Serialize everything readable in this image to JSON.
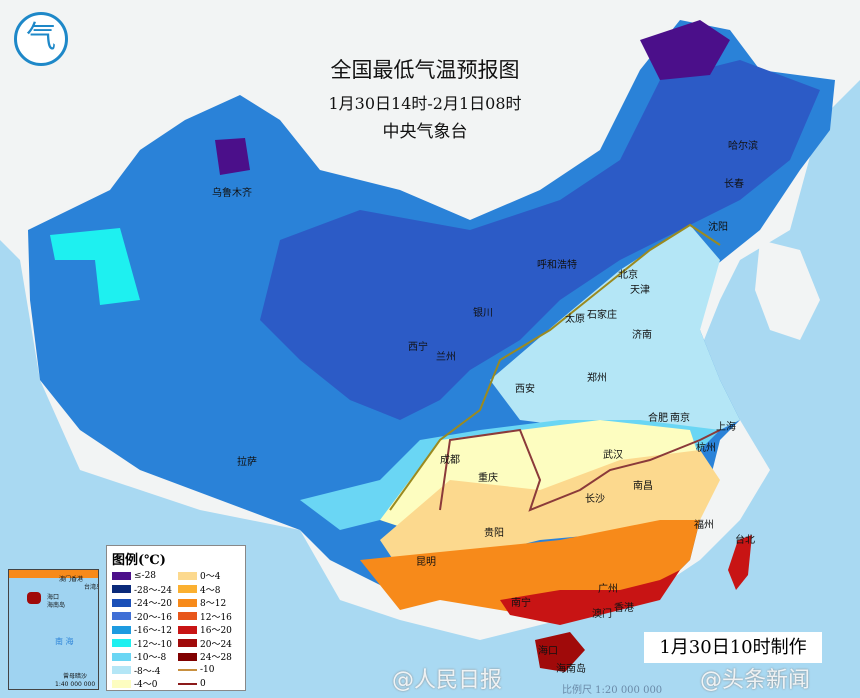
{
  "header": {
    "title": "全国最低气温预报图",
    "period": "1月30日14时-2月1日08时",
    "issuer": "中央气象台",
    "logo_text": "气"
  },
  "cities": [
    "乌鲁木齐",
    "哈尔滨",
    "长春",
    "沈阳",
    "呼和浩特",
    "北京",
    "天津",
    "银川",
    "太原",
    "石家庄",
    "济南",
    "西宁",
    "兰州",
    "郑州",
    "西安",
    "合肥",
    "南京",
    "上海",
    "武汉",
    "杭州",
    "成都",
    "重庆",
    "长沙",
    "南昌",
    "拉萨",
    "贵阳",
    "福州",
    "台北",
    "昆明",
    "广州",
    "南宁",
    "澳门",
    "香港",
    "海口",
    "海南岛"
  ],
  "legend": {
    "title": "图例(℃)",
    "items": [
      {
        "label": "≤-28",
        "color": "#4b0f8a"
      },
      {
        "label": "0～4",
        "color": "#fcd98e"
      },
      {
        "label": "-28～-24",
        "color": "#0a2a7a"
      },
      {
        "label": "4～8",
        "color": "#fbb030"
      },
      {
        "label": "-24～-20",
        "color": "#1a4fb8"
      },
      {
        "label": "8～12",
        "color": "#f78a1a"
      },
      {
        "label": "-20～-16",
        "color": "#3f6fd6"
      },
      {
        "label": "12～16",
        "color": "#e8561a"
      },
      {
        "label": "-16～-12",
        "color": "#1e9be0"
      },
      {
        "label": "16～20",
        "color": "#c81414"
      },
      {
        "label": "-12～-10",
        "color": "#1ef0f0"
      },
      {
        "label": "20～24",
        "color": "#a00a0a"
      },
      {
        "label": "-10～-8",
        "color": "#6ad6f4"
      },
      {
        "label": "24～28",
        "color": "#800000"
      },
      {
        "label": "-8～-4",
        "color": "#b4e6f6"
      },
      {
        "label": "-10",
        "color": "#c89040",
        "line": true
      },
      {
        "label": "-4～0",
        "color": "#fdfdc0"
      },
      {
        "label": "0",
        "color": "#8b1a1a",
        "line": true
      }
    ]
  },
  "inset": {
    "labels": [
      "澳门",
      "香港",
      "台湾岛",
      "海口",
      "海南岛",
      "南 海",
      "曾母暗沙"
    ],
    "scale": "1:40 000 000"
  },
  "footer": {
    "made": "1月30日10时制作",
    "scale": "比例尺 1:20 000 000",
    "watermark_left": "@人民日报",
    "watermark_right": "@头条新闻"
  }
}
